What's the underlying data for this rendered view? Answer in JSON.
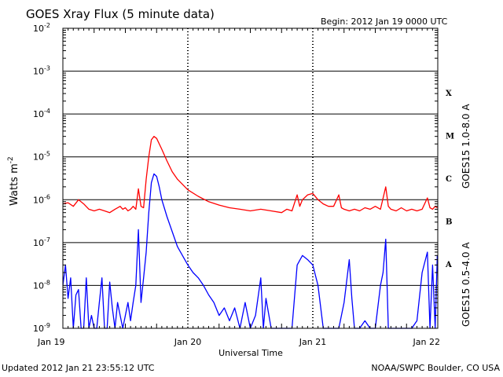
{
  "header": {
    "title": "GOES Xray Flux (5 minute data)",
    "begin": "Begin:  2012 Jan 19 0000 UTC"
  },
  "footer": {
    "updated": "Updated 2012 Jan 21 23:55:12 UTC",
    "credit": "NOAA/SWPC Boulder, CO USA"
  },
  "chart_data": {
    "type": "line",
    "title": "GOES Xray Flux (5 minute data)",
    "xlabel": "Universal Time",
    "ylabel": "Watts m",
    "ylabel_sup": "-2",
    "yscale": "log",
    "ylim": [
      1e-09,
      0.01
    ],
    "xlim": [
      "2012-01-19",
      "2012-01-22"
    ],
    "x_ticks": [
      "Jan 19",
      "Jan 20",
      "Jan 21",
      "Jan 22"
    ],
    "y_tick_labels": [
      {
        "base": "10",
        "exp": "-9"
      },
      {
        "base": "10",
        "exp": "-8"
      },
      {
        "base": "10",
        "exp": "-7"
      },
      {
        "base": "10",
        "exp": "-6"
      },
      {
        "base": "10",
        "exp": "-5"
      },
      {
        "base": "10",
        "exp": "-4"
      },
      {
        "base": "10",
        "exp": "-3"
      },
      {
        "base": "10",
        "exp": "-2"
      }
    ],
    "flare_classes": [
      {
        "label": "A",
        "flux": 3.16e-08
      },
      {
        "label": "B",
        "flux": 3.16e-07
      },
      {
        "label": "C",
        "flux": 3.16e-06
      },
      {
        "label": "M",
        "flux": 3.16e-05
      },
      {
        "label": "X",
        "flux": 0.000316
      }
    ],
    "grid": true,
    "series": [
      {
        "name": "GOES15 1.0-8.0 A",
        "color": "#ff0000",
        "points": [
          [
            "2012-01-19 00:00",
            8e-07
          ],
          [
            "2012-01-19 01:00",
            8.5e-07
          ],
          [
            "2012-01-19 02:00",
            7e-07
          ],
          [
            "2012-01-19 03:00",
            1e-06
          ],
          [
            "2012-01-19 04:00",
            8e-07
          ],
          [
            "2012-01-19 05:00",
            6e-07
          ],
          [
            "2012-01-19 06:00",
            5.5e-07
          ],
          [
            "2012-01-19 07:00",
            6e-07
          ],
          [
            "2012-01-19 08:00",
            5.5e-07
          ],
          [
            "2012-01-19 09:00",
            5e-07
          ],
          [
            "2012-01-19 10:00",
            6e-07
          ],
          [
            "2012-01-19 11:00",
            7e-07
          ],
          [
            "2012-01-19 11:30",
            6e-07
          ],
          [
            "2012-01-19 12:00",
            6.5e-07
          ],
          [
            "2012-01-19 12:30",
            5.5e-07
          ],
          [
            "2012-01-19 13:00",
            6e-07
          ],
          [
            "2012-01-19 13:30",
            7e-07
          ],
          [
            "2012-01-19 14:00",
            6e-07
          ],
          [
            "2012-01-19 14:30",
            1.8e-06
          ],
          [
            "2012-01-19 15:00",
            7e-07
          ],
          [
            "2012-01-19 15:30",
            6.5e-07
          ],
          [
            "2012-01-19 16:00",
            3e-06
          ],
          [
            "2012-01-19 16:30",
            1e-05
          ],
          [
            "2012-01-19 17:00",
            2.5e-05
          ],
          [
            "2012-01-19 17:30",
            3e-05
          ],
          [
            "2012-01-19 18:00",
            2.7e-05
          ],
          [
            "2012-01-19 19:00",
            1.5e-05
          ],
          [
            "2012-01-19 20:00",
            8e-06
          ],
          [
            "2012-01-19 21:00",
            4.5e-06
          ],
          [
            "2012-01-19 22:00",
            3e-06
          ],
          [
            "2012-01-20 00:00",
            1.7e-06
          ],
          [
            "2012-01-20 02:00",
            1.2e-06
          ],
          [
            "2012-01-20 04:00",
            9e-07
          ],
          [
            "2012-01-20 06:00",
            7.5e-07
          ],
          [
            "2012-01-20 08:00",
            6.5e-07
          ],
          [
            "2012-01-20 10:00",
            6e-07
          ],
          [
            "2012-01-20 12:00",
            5.5e-07
          ],
          [
            "2012-01-20 14:00",
            6e-07
          ],
          [
            "2012-01-20 16:00",
            5.5e-07
          ],
          [
            "2012-01-20 18:00",
            5e-07
          ],
          [
            "2012-01-20 19:00",
            6e-07
          ],
          [
            "2012-01-20 20:00",
            5.5e-07
          ],
          [
            "2012-01-20 21:00",
            1.3e-06
          ],
          [
            "2012-01-20 21:30",
            7e-07
          ],
          [
            "2012-01-20 22:00",
            1e-06
          ],
          [
            "2012-01-20 23:00",
            1.3e-06
          ],
          [
            "2012-01-21 00:00",
            1.4e-06
          ],
          [
            "2012-01-21 01:00",
            1e-06
          ],
          [
            "2012-01-21 02:00",
            8e-07
          ],
          [
            "2012-01-21 03:00",
            7e-07
          ],
          [
            "2012-01-21 04:00",
            7e-07
          ],
          [
            "2012-01-21 05:00",
            1.3e-06
          ],
          [
            "2012-01-21 05:30",
            6.5e-07
          ],
          [
            "2012-01-21 06:00",
            6e-07
          ],
          [
            "2012-01-21 07:00",
            5.5e-07
          ],
          [
            "2012-01-21 08:00",
            6e-07
          ],
          [
            "2012-01-21 09:00",
            5.5e-07
          ],
          [
            "2012-01-21 10:00",
            6.5e-07
          ],
          [
            "2012-01-21 11:00",
            6e-07
          ],
          [
            "2012-01-21 12:00",
            7e-07
          ],
          [
            "2012-01-21 13:00",
            6e-07
          ],
          [
            "2012-01-21 14:00",
            2e-06
          ],
          [
            "2012-01-21 14:30",
            7e-07
          ],
          [
            "2012-01-21 15:00",
            6e-07
          ],
          [
            "2012-01-21 16:00",
            5.5e-07
          ],
          [
            "2012-01-21 17:00",
            6.5e-07
          ],
          [
            "2012-01-21 18:00",
            5.5e-07
          ],
          [
            "2012-01-21 19:00",
            6e-07
          ],
          [
            "2012-01-21 20:00",
            5.5e-07
          ],
          [
            "2012-01-21 21:00",
            6e-07
          ],
          [
            "2012-01-21 22:00",
            1.1e-06
          ],
          [
            "2012-01-21 22:30",
            6.5e-07
          ],
          [
            "2012-01-21 23:00",
            6e-07
          ],
          [
            "2012-01-21 23:30",
            7e-07
          ],
          [
            "2012-01-21 23:55",
            6.5e-07
          ]
        ]
      },
      {
        "name": "GOES15 0.5-4.0 A",
        "color": "#0000ff",
        "points": [
          [
            "2012-01-19 00:00",
            1e-08
          ],
          [
            "2012-01-19 00:30",
            3e-08
          ],
          [
            "2012-01-19 01:00",
            5e-09
          ],
          [
            "2012-01-19 01:30",
            1.5e-08
          ],
          [
            "2012-01-19 02:00",
            1e-09
          ],
          [
            "2012-01-19 02:30",
            6e-09
          ],
          [
            "2012-01-19 03:00",
            8e-09
          ],
          [
            "2012-01-19 03:30",
            1e-09
          ],
          [
            "2012-01-19 04:00",
            1e-09
          ],
          [
            "2012-01-19 04:30",
            1.5e-08
          ],
          [
            "2012-01-19 05:00",
            1e-09
          ],
          [
            "2012-01-19 05:30",
            2e-09
          ],
          [
            "2012-01-19 06:00",
            1e-09
          ],
          [
            "2012-01-19 06:30",
            1e-09
          ],
          [
            "2012-01-19 07:00",
            4e-09
          ],
          [
            "2012-01-19 07:30",
            1.5e-08
          ],
          [
            "2012-01-19 08:00",
            1e-09
          ],
          [
            "2012-01-19 08:30",
            1e-09
          ],
          [
            "2012-01-19 09:00",
            1.2e-08
          ],
          [
            "2012-01-19 09:30",
            3e-09
          ],
          [
            "2012-01-19 10:00",
            1e-09
          ],
          [
            "2012-01-19 10:30",
            4e-09
          ],
          [
            "2012-01-19 11:00",
            2e-09
          ],
          [
            "2012-01-19 11:30",
            1e-09
          ],
          [
            "2012-01-19 12:00",
            2e-09
          ],
          [
            "2012-01-19 12:30",
            4e-09
          ],
          [
            "2012-01-19 13:00",
            1.5e-09
          ],
          [
            "2012-01-19 13:30",
            4e-09
          ],
          [
            "2012-01-19 14:00",
            1e-08
          ],
          [
            "2012-01-19 14:30",
            2e-07
          ],
          [
            "2012-01-19 15:00",
            4e-09
          ],
          [
            "2012-01-19 15:30",
            1.5e-08
          ],
          [
            "2012-01-19 16:00",
            6e-08
          ],
          [
            "2012-01-19 16:30",
            5e-07
          ],
          [
            "2012-01-19 17:00",
            2.5e-06
          ],
          [
            "2012-01-19 17:30",
            4e-06
          ],
          [
            "2012-01-19 18:00",
            3.5e-06
          ],
          [
            "2012-01-19 18:30",
            2e-06
          ],
          [
            "2012-01-19 19:00",
            1e-06
          ],
          [
            "2012-01-19 20:00",
            4e-07
          ],
          [
            "2012-01-19 21:00",
            1.8e-07
          ],
          [
            "2012-01-19 22:00",
            8e-08
          ],
          [
            "2012-01-20 00:00",
            3e-08
          ],
          [
            "2012-01-20 01:00",
            2e-08
          ],
          [
            "2012-01-20 02:00",
            1.5e-08
          ],
          [
            "2012-01-20 03:00",
            1e-08
          ],
          [
            "2012-01-20 04:00",
            6e-09
          ],
          [
            "2012-01-20 05:00",
            4e-09
          ],
          [
            "2012-01-20 06:00",
            2e-09
          ],
          [
            "2012-01-20 07:00",
            3e-09
          ],
          [
            "2012-01-20 08:00",
            1.5e-09
          ],
          [
            "2012-01-20 09:00",
            3e-09
          ],
          [
            "2012-01-20 10:00",
            1e-09
          ],
          [
            "2012-01-20 11:00",
            4e-09
          ],
          [
            "2012-01-20 12:00",
            1e-09
          ],
          [
            "2012-01-20 13:00",
            2e-09
          ],
          [
            "2012-01-20 14:00",
            1.5e-08
          ],
          [
            "2012-01-20 14:30",
            1e-09
          ],
          [
            "2012-01-20 15:00",
            5e-09
          ],
          [
            "2012-01-20 16:00",
            1e-09
          ],
          [
            "2012-01-20 17:00",
            1e-09
          ],
          [
            "2012-01-20 18:00",
            1e-09
          ],
          [
            "2012-01-20 19:00",
            1e-09
          ],
          [
            "2012-01-20 20:00",
            1e-09
          ],
          [
            "2012-01-20 21:00",
            3e-08
          ],
          [
            "2012-01-20 22:00",
            5e-08
          ],
          [
            "2012-01-20 23:00",
            4e-08
          ],
          [
            "2012-01-21 00:00",
            3e-08
          ],
          [
            "2012-01-21 01:00",
            1e-08
          ],
          [
            "2012-01-21 02:00",
            1e-09
          ],
          [
            "2012-01-21 03:00",
            1e-09
          ],
          [
            "2012-01-21 04:00",
            1e-09
          ],
          [
            "2012-01-21 05:00",
            1e-09
          ],
          [
            "2012-01-21 06:00",
            4e-09
          ],
          [
            "2012-01-21 07:00",
            4e-08
          ],
          [
            "2012-01-21 07:30",
            5e-09
          ],
          [
            "2012-01-21 08:00",
            1e-09
          ],
          [
            "2012-01-21 09:00",
            1e-09
          ],
          [
            "2012-01-21 10:00",
            1.5e-09
          ],
          [
            "2012-01-21 11:00",
            1e-09
          ],
          [
            "2012-01-21 12:00",
            1e-09
          ],
          [
            "2012-01-21 13:00",
            1e-08
          ],
          [
            "2012-01-21 13:30",
            2e-08
          ],
          [
            "2012-01-21 14:00",
            1.2e-07
          ],
          [
            "2012-01-21 14:30",
            1e-09
          ],
          [
            "2012-01-21 15:00",
            1e-09
          ],
          [
            "2012-01-21 16:00",
            1e-09
          ],
          [
            "2012-01-21 17:00",
            1e-09
          ],
          [
            "2012-01-21 18:00",
            1e-09
          ],
          [
            "2012-01-21 19:00",
            1e-09
          ],
          [
            "2012-01-21 20:00",
            1.5e-09
          ],
          [
            "2012-01-21 21:00",
            2e-08
          ],
          [
            "2012-01-21 22:00",
            6e-08
          ],
          [
            "2012-01-21 22:30",
            1e-09
          ],
          [
            "2012-01-21 23:00",
            3e-08
          ],
          [
            "2012-01-21 23:30",
            1e-09
          ],
          [
            "2012-01-21 23:55",
            5e-08
          ]
        ]
      }
    ]
  }
}
